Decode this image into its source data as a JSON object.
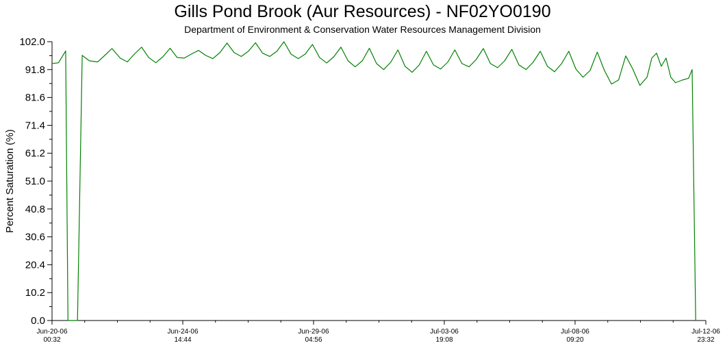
{
  "chart_data": {
    "type": "line",
    "title": "Gills Pond Brook (Aur Resources) - NF02YO0190",
    "subtitle": "Department of Environment & Conservation Water Resources Management Division",
    "ylabel": "Percent Saturation (%)",
    "xlabel": "",
    "ylim": [
      0,
      102
    ],
    "y_ticks": [
      "0.0",
      "10.2",
      "20.4",
      "30.6",
      "40.8",
      "51.0",
      "61.2",
      "71.4",
      "81.6",
      "91.8",
      "102.0"
    ],
    "xlim": [
      "2006-06-20 00:32",
      "2006-07-12 23:32"
    ],
    "x_ticks": [
      {
        "date": "Jun-20-06",
        "time": "00:32",
        "t": "2006-06-20 00:32"
      },
      {
        "date": "Jun-24-06",
        "time": "14:44",
        "t": "2006-06-24 14:44"
      },
      {
        "date": "Jun-29-06",
        "time": "04:56",
        "t": "2006-06-29 04:56"
      },
      {
        "date": "Jul-03-06",
        "time": "19:08",
        "t": "2006-07-03 19:08"
      },
      {
        "date": "Jul-08-06",
        "time": "09:20",
        "t": "2006-07-08 09:20"
      },
      {
        "date": "Jul-12-06",
        "time": "23:32",
        "t": "2006-07-12 23:32"
      }
    ],
    "grid": false,
    "legend": false,
    "series": [
      {
        "color": "#008000",
        "points": [
          [
            "2006-06-20 00:32",
            94.0
          ],
          [
            "2006-06-20 06:00",
            94.3
          ],
          [
            "2006-06-20 12:00",
            98.6
          ],
          [
            "2006-06-20 14:00",
            0.0
          ],
          [
            "2006-06-20 22:00",
            0.0
          ],
          [
            "2006-06-21 02:00",
            97.0
          ],
          [
            "2006-06-21 08:00",
            95.0
          ],
          [
            "2006-06-21 15:00",
            94.6
          ],
          [
            "2006-06-21 21:00",
            97.0
          ],
          [
            "2006-06-22 03:00",
            99.5
          ],
          [
            "2006-06-22 10:00",
            96.0
          ],
          [
            "2006-06-22 16:00",
            94.6
          ],
          [
            "2006-06-22 22:00",
            97.5
          ],
          [
            "2006-06-23 04:00",
            100.0
          ],
          [
            "2006-06-23 10:00",
            96.2
          ],
          [
            "2006-06-23 16:00",
            94.3
          ],
          [
            "2006-06-23 22:00",
            96.5
          ],
          [
            "2006-06-24 04:00",
            99.6
          ],
          [
            "2006-06-24 10:00",
            96.2
          ],
          [
            "2006-06-24 16:00",
            96.0
          ],
          [
            "2006-06-24 22:00",
            97.5
          ],
          [
            "2006-06-25 04:00",
            98.8
          ],
          [
            "2006-06-25 10:00",
            97.0
          ],
          [
            "2006-06-25 16:00",
            95.8
          ],
          [
            "2006-06-25 22:00",
            98.0
          ],
          [
            "2006-06-26 04:00",
            101.5
          ],
          [
            "2006-06-26 10:00",
            98.0
          ],
          [
            "2006-06-26 16:00",
            96.6
          ],
          [
            "2006-06-26 22:00",
            98.5
          ],
          [
            "2006-06-27 04:00",
            101.6
          ],
          [
            "2006-06-27 10:00",
            97.8
          ],
          [
            "2006-06-27 16:00",
            96.6
          ],
          [
            "2006-06-27 22:00",
            98.5
          ],
          [
            "2006-06-28 04:00",
            102.0
          ],
          [
            "2006-06-28 10:00",
            97.4
          ],
          [
            "2006-06-28 16:00",
            95.8
          ],
          [
            "2006-06-28 22:00",
            97.5
          ],
          [
            "2006-06-29 04:00",
            101.0
          ],
          [
            "2006-06-29 10:00",
            96.2
          ],
          [
            "2006-06-29 16:00",
            94.2
          ],
          [
            "2006-06-29 22:00",
            96.5
          ],
          [
            "2006-06-30 04:00",
            100.0
          ],
          [
            "2006-06-30 10:00",
            95.0
          ],
          [
            "2006-06-30 16:00",
            92.8
          ],
          [
            "2006-06-30 22:00",
            95.0
          ],
          [
            "2006-07-01 04:00",
            99.6
          ],
          [
            "2006-07-01 10:00",
            94.0
          ],
          [
            "2006-07-01 16:00",
            91.8
          ],
          [
            "2006-07-01 22:00",
            94.5
          ],
          [
            "2006-07-02 04:00",
            99.0
          ],
          [
            "2006-07-02 10:00",
            93.0
          ],
          [
            "2006-07-02 16:00",
            90.8
          ],
          [
            "2006-07-02 22:00",
            93.5
          ],
          [
            "2006-07-03 04:00",
            98.5
          ],
          [
            "2006-07-03 10:00",
            93.5
          ],
          [
            "2006-07-03 16:00",
            92.0
          ],
          [
            "2006-07-03 22:00",
            94.5
          ],
          [
            "2006-07-04 04:00",
            99.0
          ],
          [
            "2006-07-04 10:00",
            94.0
          ],
          [
            "2006-07-04 16:00",
            92.8
          ],
          [
            "2006-07-04 22:00",
            95.5
          ],
          [
            "2006-07-05 04:00",
            99.5
          ],
          [
            "2006-07-05 10:00",
            94.0
          ],
          [
            "2006-07-05 16:00",
            92.5
          ],
          [
            "2006-07-05 22:00",
            95.0
          ],
          [
            "2006-07-06 04:00",
            99.2
          ],
          [
            "2006-07-06 10:00",
            93.5
          ],
          [
            "2006-07-06 16:00",
            91.8
          ],
          [
            "2006-07-06 22:00",
            94.5
          ],
          [
            "2006-07-07 04:00",
            98.5
          ],
          [
            "2006-07-07 10:00",
            93.0
          ],
          [
            "2006-07-07 16:00",
            91.0
          ],
          [
            "2006-07-07 22:00",
            94.0
          ],
          [
            "2006-07-08 04:00",
            98.5
          ],
          [
            "2006-07-08 10:00",
            92.0
          ],
          [
            "2006-07-08 16:00",
            89.0
          ],
          [
            "2006-07-08 22:00",
            91.5
          ],
          [
            "2006-07-09 04:00",
            98.2
          ],
          [
            "2006-07-09 10:00",
            91.5
          ],
          [
            "2006-07-09 16:00",
            86.5
          ],
          [
            "2006-07-09 22:00",
            88.0
          ],
          [
            "2006-07-10 04:00",
            96.8
          ],
          [
            "2006-07-10 10:00",
            92.0
          ],
          [
            "2006-07-10 16:00",
            86.0
          ],
          [
            "2006-07-10 22:00",
            89.0
          ],
          [
            "2006-07-11 02:00",
            96.0
          ],
          [
            "2006-07-11 06:00",
            97.8
          ],
          [
            "2006-07-11 10:00",
            93.0
          ],
          [
            "2006-07-11 14:00",
            96.0
          ],
          [
            "2006-07-11 18:00",
            89.0
          ],
          [
            "2006-07-11 22:00",
            87.0
          ],
          [
            "2006-07-12 04:00",
            88.0
          ],
          [
            "2006-07-12 09:00",
            88.6
          ],
          [
            "2006-07-12 12:00",
            91.8
          ],
          [
            "2006-07-12 15:00",
            0.0
          ]
        ]
      }
    ]
  }
}
